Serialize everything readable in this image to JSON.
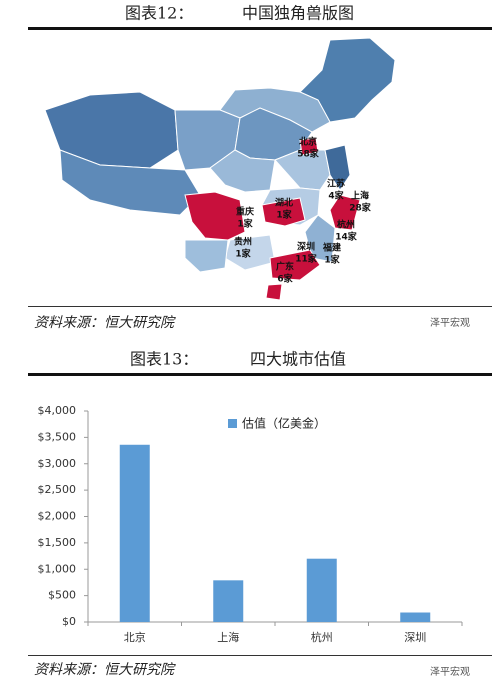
{
  "map_figure": {
    "label": "图表12：",
    "title": "中国独角兽版图",
    "regions": [
      {
        "name": "北京",
        "count": "58家"
      },
      {
        "name": "江苏",
        "count": "4家"
      },
      {
        "name": "上海",
        "count": "28家"
      },
      {
        "name": "杭州",
        "count": "14家"
      },
      {
        "name": "福建",
        "count": "1家"
      },
      {
        "name": "深圳",
        "count": "11家"
      },
      {
        "name": "广东",
        "count": "6家"
      },
      {
        "name": "湖北",
        "count": "1家"
      },
      {
        "name": "重庆",
        "count": "1家"
      },
      {
        "name": "贵州",
        "count": "1家"
      }
    ],
    "source": "资料来源：恒大研究院",
    "watermark": "泽平宏观"
  },
  "chart_data": {
    "type": "bar",
    "figure_label": "图表13：",
    "title": "四大城市估值",
    "categories": [
      "北京",
      "上海",
      "杭州",
      "深圳"
    ],
    "series": [
      {
        "name": "估值（亿美金）",
        "color": "#5b9bd5",
        "values": [
          3360,
          790,
          1200,
          180
        ]
      }
    ],
    "ylim": [
      0,
      4000
    ],
    "yticks": [
      {
        "value": 0,
        "label": "$0"
      },
      {
        "value": 500,
        "label": "$500"
      },
      {
        "value": 1000,
        "label": "$1,000"
      },
      {
        "value": 1500,
        "label": "$1,500"
      },
      {
        "value": 2000,
        "label": "$2,000"
      },
      {
        "value": 2500,
        "label": "$2,500"
      },
      {
        "value": 3000,
        "label": "$3,000"
      },
      {
        "value": 3500,
        "label": "$3,500"
      },
      {
        "value": 4000,
        "label": "$4,000"
      }
    ],
    "source": "资料来源：恒大研究院",
    "watermark": "泽平宏观"
  }
}
